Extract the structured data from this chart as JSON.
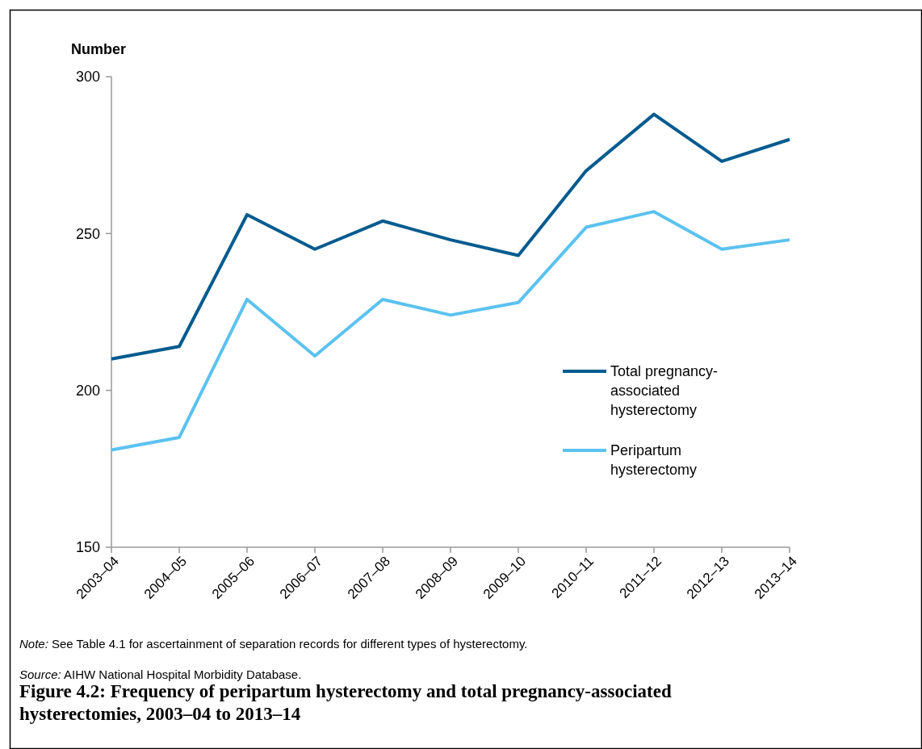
{
  "chart_data": {
    "type": "line",
    "title": "Figure 4.2: Frequency of peripartum hysterectomy and total pregnancy-associated hysterectomies, 2003–04 to 2013–14",
    "ylabel": "Number",
    "categories": [
      "2003–04",
      "2004–05",
      "2005–06",
      "2006–07",
      "2007–08",
      "2008–09",
      "2009–10",
      "2010–11",
      "2011–12",
      "2012–13",
      "2013–14"
    ],
    "series": [
      {
        "name": "Total pregnancy-associated hysterectomy",
        "color": "#005b8f",
        "values": [
          210,
          214,
          256,
          245,
          254,
          248,
          243,
          270,
          288,
          273,
          280
        ]
      },
      {
        "name": "Peripartum hysterectomy",
        "color": "#5bc2ef",
        "values": [
          181,
          185,
          229,
          211,
          229,
          224,
          228,
          252,
          257,
          245,
          248
        ]
      }
    ],
    "ylim": [
      150,
      300
    ],
    "yticks": [
      150,
      200,
      250,
      300
    ],
    "grid": false,
    "legend": "right",
    "marker": "none",
    "line_style": "solid",
    "annotations": [
      "Note: See Table 4.1 for ascertainment of separation records for different types of hysterectomy.",
      "Source: AIHW National Hospital Morbidity Database."
    ]
  }
}
